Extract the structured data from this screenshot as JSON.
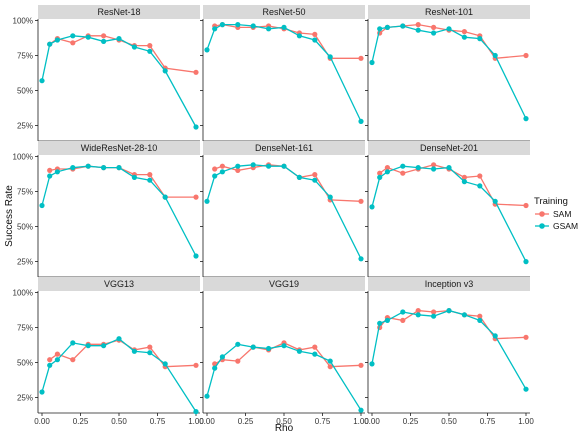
{
  "chart_data": {
    "type": "line",
    "xlabel": "Rho",
    "ylabel": "Success Rate",
    "xlim": [
      0,
      1
    ],
    "ylim": [
      0.14,
      1.01
    ],
    "x_ticks": [
      0.0,
      0.25,
      0.5,
      0.75,
      1.0
    ],
    "x_tick_labels": [
      "0.00",
      "0.25",
      "0.50",
      "0.75",
      "1.00"
    ],
    "y_ticks": [
      0.25,
      0.5,
      0.75,
      1.0
    ],
    "y_tick_labels": [
      "25%",
      "50%",
      "75%",
      "100%"
    ],
    "grid": false,
    "legend": {
      "title": "Training",
      "placement": "right",
      "entries": [
        {
          "name": "SAM",
          "color": "#F8766D"
        },
        {
          "name": "GSAM",
          "color": "#00BFC4"
        }
      ]
    },
    "x": [
      0.0,
      0.05,
      0.1,
      0.2,
      0.3,
      0.4,
      0.5,
      0.6,
      0.7,
      0.8,
      1.0
    ],
    "panels": [
      {
        "title": "ResNet-18",
        "series": [
          {
            "name": "SAM",
            "x": [
              0.05,
              0.1,
              0.2,
              0.3,
              0.4,
              0.5,
              0.6,
              0.7,
              0.8,
              1.0
            ],
            "values": [
              0.83,
              0.87,
              0.84,
              0.89,
              0.89,
              0.86,
              0.82,
              0.82,
              0.66,
              0.63
            ]
          },
          {
            "name": "GSAM",
            "x": [
              0.0,
              0.05,
              0.1,
              0.2,
              0.3,
              0.4,
              0.5,
              0.6,
              0.7,
              0.8,
              1.0
            ],
            "values": [
              0.57,
              0.83,
              0.86,
              0.89,
              0.88,
              0.85,
              0.87,
              0.81,
              0.78,
              0.64,
              0.24
            ]
          }
        ]
      },
      {
        "title": "ResNet-50",
        "series": [
          {
            "name": "SAM",
            "x": [
              0.05,
              0.1,
              0.2,
              0.3,
              0.4,
              0.5,
              0.6,
              0.7,
              0.8,
              1.0
            ],
            "values": [
              0.96,
              0.97,
              0.95,
              0.95,
              0.96,
              0.94,
              0.91,
              0.9,
              0.73,
              0.73
            ]
          },
          {
            "name": "GSAM",
            "x": [
              0.0,
              0.05,
              0.1,
              0.2,
              0.3,
              0.4,
              0.5,
              0.6,
              0.7,
              0.8,
              1.0
            ],
            "values": [
              0.79,
              0.94,
              0.97,
              0.97,
              0.96,
              0.94,
              0.95,
              0.89,
              0.86,
              0.74,
              0.28
            ]
          }
        ]
      },
      {
        "title": "ResNet-101",
        "series": [
          {
            "name": "SAM",
            "x": [
              0.05,
              0.1,
              0.2,
              0.3,
              0.4,
              0.5,
              0.6,
              0.7,
              0.8,
              1.0
            ],
            "values": [
              0.91,
              0.95,
              0.96,
              0.97,
              0.95,
              0.93,
              0.92,
              0.89,
              0.73,
              0.75
            ]
          },
          {
            "name": "GSAM",
            "x": [
              0.0,
              0.05,
              0.1,
              0.2,
              0.3,
              0.4,
              0.5,
              0.6,
              0.7,
              0.8,
              1.0
            ],
            "values": [
              0.7,
              0.94,
              0.95,
              0.96,
              0.93,
              0.91,
              0.94,
              0.88,
              0.87,
              0.75,
              0.3
            ]
          }
        ]
      },
      {
        "title": "WideResNet-28-10",
        "series": [
          {
            "name": "SAM",
            "x": [
              0.05,
              0.1,
              0.2,
              0.3,
              0.4,
              0.5,
              0.6,
              0.7,
              0.8,
              1.0
            ],
            "values": [
              0.9,
              0.91,
              0.91,
              0.93,
              0.92,
              0.92,
              0.87,
              0.87,
              0.71,
              0.71
            ]
          },
          {
            "name": "GSAM",
            "x": [
              0.0,
              0.05,
              0.1,
              0.2,
              0.3,
              0.4,
              0.5,
              0.6,
              0.7,
              0.8,
              1.0
            ],
            "values": [
              0.65,
              0.86,
              0.89,
              0.92,
              0.93,
              0.92,
              0.92,
              0.85,
              0.83,
              0.71,
              0.29
            ]
          }
        ]
      },
      {
        "title": "DenseNet-161",
        "series": [
          {
            "name": "SAM",
            "x": [
              0.05,
              0.1,
              0.2,
              0.3,
              0.4,
              0.5,
              0.6,
              0.7,
              0.8,
              1.0
            ],
            "values": [
              0.91,
              0.93,
              0.9,
              0.92,
              0.94,
              0.93,
              0.85,
              0.87,
              0.69,
              0.68
            ]
          },
          {
            "name": "GSAM",
            "x": [
              0.0,
              0.05,
              0.1,
              0.2,
              0.3,
              0.4,
              0.5,
              0.6,
              0.7,
              0.8,
              1.0
            ],
            "values": [
              0.68,
              0.86,
              0.89,
              0.93,
              0.94,
              0.93,
              0.93,
              0.85,
              0.83,
              0.71,
              0.27
            ]
          }
        ]
      },
      {
        "title": "DenseNet-201",
        "series": [
          {
            "name": "SAM",
            "x": [
              0.05,
              0.1,
              0.2,
              0.3,
              0.4,
              0.5,
              0.6,
              0.7,
              0.8,
              1.0
            ],
            "values": [
              0.88,
              0.92,
              0.88,
              0.91,
              0.94,
              0.91,
              0.85,
              0.86,
              0.66,
              0.65
            ]
          },
          {
            "name": "GSAM",
            "x": [
              0.0,
              0.05,
              0.1,
              0.2,
              0.3,
              0.4,
              0.5,
              0.6,
              0.7,
              0.8,
              1.0
            ],
            "values": [
              0.64,
              0.85,
              0.89,
              0.93,
              0.92,
              0.91,
              0.92,
              0.82,
              0.79,
              0.68,
              0.25
            ]
          }
        ]
      },
      {
        "title": "VGG13",
        "series": [
          {
            "name": "SAM",
            "x": [
              0.05,
              0.1,
              0.2,
              0.3,
              0.4,
              0.5,
              0.6,
              0.7,
              0.8,
              1.0
            ],
            "values": [
              0.52,
              0.56,
              0.52,
              0.63,
              0.63,
              0.66,
              0.59,
              0.61,
              0.47,
              0.48
            ]
          },
          {
            "name": "GSAM",
            "x": [
              0.0,
              0.05,
              0.1,
              0.2,
              0.3,
              0.4,
              0.5,
              0.6,
              0.7,
              0.8,
              1.0
            ],
            "values": [
              0.29,
              0.48,
              0.52,
              0.64,
              0.62,
              0.62,
              0.67,
              0.58,
              0.57,
              0.49,
              0.15
            ]
          }
        ]
      },
      {
        "title": "VGG19",
        "series": [
          {
            "name": "SAM",
            "x": [
              0.05,
              0.1,
              0.2,
              0.3,
              0.4,
              0.5,
              0.6,
              0.7,
              0.8,
              1.0
            ],
            "values": [
              0.49,
              0.52,
              0.51,
              0.61,
              0.59,
              0.64,
              0.59,
              0.61,
              0.47,
              0.48
            ]
          },
          {
            "name": "GSAM",
            "x": [
              0.0,
              0.05,
              0.1,
              0.2,
              0.3,
              0.4,
              0.5,
              0.6,
              0.7,
              0.8,
              1.0
            ],
            "values": [
              0.26,
              0.46,
              0.54,
              0.63,
              0.61,
              0.6,
              0.62,
              0.58,
              0.56,
              0.51,
              0.16
            ]
          }
        ]
      },
      {
        "title": "Inception v3",
        "series": [
          {
            "name": "SAM",
            "x": [
              0.05,
              0.1,
              0.2,
              0.3,
              0.4,
              0.5,
              0.6,
              0.7,
              0.8,
              1.0
            ],
            "values": [
              0.75,
              0.82,
              0.8,
              0.87,
              0.86,
              0.87,
              0.84,
              0.83,
              0.67,
              0.68
            ]
          },
          {
            "name": "GSAM",
            "x": [
              0.0,
              0.05,
              0.1,
              0.2,
              0.3,
              0.4,
              0.5,
              0.6,
              0.7,
              0.8,
              1.0
            ],
            "values": [
              0.49,
              0.78,
              0.8,
              0.86,
              0.84,
              0.83,
              0.87,
              0.84,
              0.8,
              0.69,
              0.31
            ]
          }
        ]
      }
    ]
  }
}
